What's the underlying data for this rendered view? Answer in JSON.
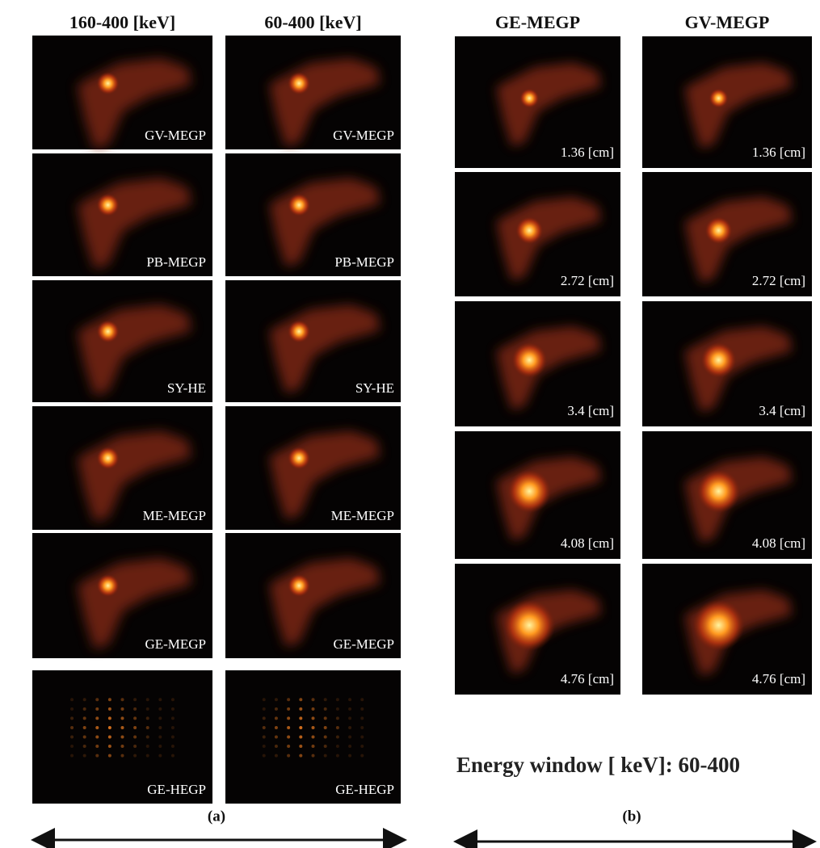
{
  "panel_a": {
    "columns": [
      "160-400 [keV]",
      "60-400 [keV]"
    ],
    "rows": [
      [
        "GV-MEGP",
        "GV-MEGP"
      ],
      [
        "PB-MEGP",
        "PB-MEGP"
      ],
      [
        "SY-HE",
        "SY-HE"
      ],
      [
        "ME-MEGP",
        "ME-MEGP"
      ],
      [
        "GE-MEGP",
        "GE-MEGP"
      ],
      [
        "GE-HEGP",
        "GE-HEGP"
      ]
    ],
    "caption": "(a)"
  },
  "panel_b": {
    "columns": [
      "GE-MEGP",
      "GV-MEGP"
    ],
    "rows": [
      [
        "1.36 [cm]",
        "1.36 [cm]"
      ],
      [
        "2.72 [cm]",
        "2.72 [cm]"
      ],
      [
        "3.4 [cm]",
        "3.4 [cm]"
      ],
      [
        "4.08 [cm]",
        "4.08 [cm]"
      ],
      [
        "4.76 [cm]",
        "4.76 [cm]"
      ]
    ],
    "note": "Energy window [ keV]: 60-400",
    "caption": "(b)"
  }
}
